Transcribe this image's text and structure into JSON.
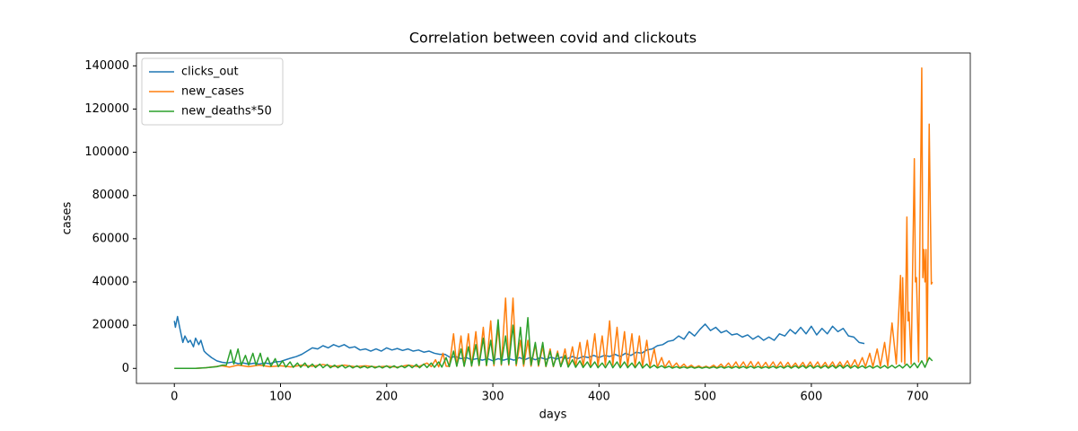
{
  "chart_data": {
    "type": "line",
    "title": "Correlation between covid and clickouts",
    "x_label": "days",
    "y_label": "cases",
    "xlim": [
      -35.7,
      749.7
    ],
    "xticks": [
      0,
      100,
      200,
      300,
      400,
      500,
      600,
      700
    ],
    "ylim": [
      -6950,
      145950
    ],
    "yticks": [
      0,
      20000,
      40000,
      60000,
      80000,
      100000,
      120000,
      140000
    ],
    "legend": "upper left",
    "series": [
      {
        "name": "clicks_out",
        "color": "#1f77b4",
        "x": [
          0,
          1,
          3,
          5,
          8,
          10,
          13,
          15,
          18,
          20,
          23,
          25,
          28,
          30,
          35,
          40,
          45,
          50,
          55,
          60,
          65,
          70,
          75,
          80,
          85,
          90,
          95,
          100,
          105,
          110,
          115,
          120,
          125,
          130,
          135,
          140,
          145,
          150,
          155,
          160,
          165,
          170,
          175,
          180,
          185,
          190,
          195,
          200,
          205,
          210,
          215,
          220,
          225,
          230,
          235,
          240,
          245,
          250,
          255,
          260,
          265,
          270,
          275,
          280,
          285,
          290,
          295,
          300,
          305,
          310,
          315,
          320,
          325,
          330,
          335,
          340,
          345,
          350,
          355,
          360,
          365,
          370,
          375,
          380,
          385,
          390,
          395,
          400,
          405,
          410,
          415,
          420,
          425,
          430,
          435,
          440,
          445,
          450,
          455,
          460,
          465,
          470,
          475,
          480,
          485,
          490,
          495,
          500,
          505,
          510,
          515,
          520,
          525,
          530,
          535,
          540,
          545,
          550,
          555,
          560,
          565,
          570,
          575,
          580,
          585,
          590,
          595,
          600,
          605,
          610,
          615,
          620,
          625,
          630,
          635,
          640,
          645,
          650
        ],
        "values": [
          22000,
          19000,
          24000,
          19000,
          12000,
          15000,
          12000,
          13000,
          10000,
          14000,
          11000,
          13000,
          8000,
          7000,
          5000,
          3500,
          2800,
          2500,
          3000,
          2200,
          2500,
          2000,
          2400,
          2000,
          2500,
          2200,
          3000,
          3200,
          4000,
          4800,
          5500,
          6500,
          8000,
          9500,
          9000,
          10500,
          9500,
          11000,
          10000,
          11000,
          9500,
          10000,
          8500,
          9000,
          8000,
          9000,
          8000,
          9500,
          8500,
          9200,
          8300,
          9000,
          8000,
          8500,
          7500,
          8000,
          7000,
          6500,
          6500,
          5000,
          5500,
          4500,
          5000,
          4000,
          4500,
          3800,
          4500,
          3500,
          4500,
          3800,
          4500,
          3800,
          5000,
          4000,
          5000,
          4000,
          5000,
          4200,
          5200,
          4300,
          5200,
          4500,
          5500,
          4500,
          5500,
          5000,
          6000,
          5000,
          6000,
          5500,
          6500,
          5500,
          7000,
          6000,
          7500,
          7000,
          8500,
          9000,
          10500,
          11000,
          12500,
          13000,
          15000,
          13500,
          17000,
          15000,
          18000,
          20500,
          17500,
          19000,
          16500,
          17500,
          15500,
          16000,
          14500,
          15500,
          13500,
          15000,
          13000,
          14500,
          13000,
          16000,
          15000,
          18000,
          16000,
          19000,
          16000,
          19500,
          15500,
          18500,
          16000,
          19500,
          17000,
          18500,
          15000,
          14500,
          12000,
          11500
        ]
      },
      {
        "name": "new_cases",
        "color": "#ff7f0e",
        "x": [
          0,
          20,
          30,
          38,
          45,
          52,
          60,
          70,
          80,
          90,
          100,
          110,
          120,
          130,
          140,
          150,
          160,
          170,
          180,
          190,
          200,
          210,
          220,
          230,
          238,
          242,
          246,
          249,
          253,
          256,
          259,
          263,
          266,
          270,
          273,
          277,
          280,
          284,
          287,
          291,
          294,
          298,
          301,
          305,
          308,
          312,
          315,
          319,
          322,
          326,
          329,
          333,
          336,
          340,
          343,
          347,
          350,
          354,
          357,
          361,
          364,
          368,
          371,
          375,
          378,
          382,
          385,
          389,
          392,
          396,
          399,
          403,
          406,
          410,
          413,
          417,
          420,
          424,
          427,
          431,
          434,
          438,
          441,
          445,
          448,
          452,
          455,
          459,
          462,
          466,
          469,
          473,
          476,
          480,
          483,
          487,
          490,
          494,
          497,
          501,
          504,
          508,
          511,
          515,
          518,
          522,
          525,
          529,
          532,
          536,
          539,
          543,
          546,
          550,
          553,
          557,
          560,
          564,
          567,
          571,
          574,
          578,
          581,
          585,
          588,
          592,
          595,
          599,
          602,
          606,
          609,
          613,
          616,
          620,
          623,
          627,
          630,
          634,
          637,
          641,
          644,
          648,
          651,
          655,
          658,
          662,
          665,
          669,
          672,
          676,
          680,
          684,
          685,
          686,
          688,
          690,
          691,
          692,
          694,
          697,
          698,
          699,
          701,
          704,
          705,
          706,
          707,
          708,
          709,
          711,
          713,
          714
        ],
        "values": [
          0,
          0,
          300,
          800,
          1200,
          600,
          1500,
          800,
          1500,
          800,
          1200,
          700,
          1500,
          1000,
          1800,
          900,
          1500,
          800,
          1200,
          700,
          1000,
          600,
          1500,
          800,
          2500,
          800,
          4000,
          700,
          7000,
          1000,
          1000,
          16000,
          1000,
          15000,
          1000,
          16000,
          1000,
          17000,
          1200,
          19000,
          1200,
          22000,
          1200,
          19000,
          1500,
          32500,
          1500,
          32500,
          1200,
          13000,
          1000,
          13000,
          1000,
          11000,
          1000,
          10000,
          800,
          9000,
          800,
          8000,
          800,
          9000,
          800,
          10000,
          1000,
          12000,
          1000,
          13000,
          1200,
          16000,
          1200,
          15000,
          1500,
          22000,
          1500,
          19000,
          1200,
          17000,
          1200,
          16000,
          1000,
          15000,
          1000,
          13000,
          800,
          9000,
          600,
          5000,
          500,
          3500,
          400,
          2500,
          300,
          2000,
          300,
          1500,
          300,
          1200,
          300,
          1000,
          300,
          1500,
          300,
          2000,
          300,
          2500,
          300,
          3000,
          300,
          3000,
          300,
          3200,
          300,
          3000,
          300,
          2800,
          300,
          3000,
          300,
          3000,
          300,
          2800,
          300,
          2500,
          300,
          2800,
          300,
          3000,
          300,
          3000,
          300,
          2800,
          300,
          3000,
          300,
          3000,
          500,
          3500,
          500,
          4000,
          600,
          5000,
          800,
          7000,
          800,
          9000,
          1000,
          12000,
          1000,
          21000,
          2000,
          43000,
          3000,
          42000,
          2000,
          70000,
          22000,
          26000,
          2000,
          97000,
          40000,
          42000,
          3000,
          139000,
          42000,
          55000,
          40000,
          55000,
          3000,
          113000,
          39000,
          40000
        ]
      },
      {
        "name": "new_deaths*50",
        "color": "#2ca02c",
        "x": [
          0,
          20,
          30,
          40,
          45,
          49,
          53,
          56,
          60,
          63,
          67,
          70,
          74,
          77,
          81,
          84,
          88,
          91,
          95,
          98,
          102,
          105,
          109,
          112,
          116,
          119,
          123,
          126,
          130,
          133,
          137,
          140,
          144,
          147,
          151,
          154,
          158,
          161,
          165,
          168,
          172,
          175,
          179,
          182,
          186,
          189,
          193,
          196,
          200,
          203,
          207,
          210,
          214,
          217,
          221,
          224,
          228,
          231,
          235,
          238,
          242,
          245,
          249,
          252,
          256,
          259,
          263,
          266,
          270,
          273,
          277,
          280,
          284,
          287,
          291,
          294,
          298,
          301,
          305,
          308,
          312,
          315,
          319,
          322,
          326,
          329,
          333,
          336,
          340,
          343,
          347,
          350,
          354,
          357,
          361,
          364,
          368,
          371,
          375,
          378,
          382,
          385,
          389,
          392,
          396,
          399,
          403,
          406,
          410,
          413,
          417,
          420,
          424,
          427,
          431,
          434,
          438,
          441,
          445,
          448,
          452,
          455,
          459,
          462,
          466,
          469,
          473,
          476,
          480,
          483,
          487,
          490,
          494,
          497,
          501,
          504,
          508,
          511,
          515,
          518,
          522,
          525,
          529,
          532,
          536,
          539,
          543,
          546,
          550,
          553,
          557,
          560,
          564,
          567,
          571,
          574,
          578,
          581,
          585,
          588,
          592,
          595,
          599,
          602,
          606,
          609,
          613,
          616,
          620,
          623,
          627,
          630,
          634,
          637,
          641,
          644,
          648,
          651,
          655,
          658,
          662,
          665,
          669,
          672,
          676,
          679,
          683,
          686,
          690,
          693,
          697,
          700,
          704,
          707,
          711,
          714
        ],
        "values": [
          0,
          0,
          300,
          800,
          1500,
          1500,
          8500,
          2000,
          9000,
          1500,
          6000,
          1500,
          7000,
          1500,
          7000,
          1000,
          5000,
          1000,
          4500,
          800,
          3500,
          600,
          3000,
          500,
          2500,
          500,
          2500,
          400,
          2000,
          400,
          2000,
          300,
          1800,
          300,
          1500,
          300,
          1500,
          200,
          1200,
          200,
          1200,
          200,
          1000,
          200,
          1000,
          200,
          1000,
          200,
          1200,
          200,
          1200,
          200,
          1200,
          300,
          1500,
          300,
          1800,
          300,
          2000,
          400,
          2500,
          500,
          3000,
          600,
          5000,
          800,
          8000,
          1000,
          9000,
          1000,
          10000,
          1200,
          11000,
          1500,
          14000,
          1500,
          13000,
          2000,
          22500,
          2000,
          15000,
          2000,
          20000,
          2000,
          19000,
          2000,
          23500,
          1500,
          12000,
          1500,
          12000,
          1000,
          8000,
          1000,
          7000,
          800,
          6000,
          600,
          4000,
          500,
          3500,
          400,
          3000,
          400,
          3000,
          300,
          2500,
          300,
          3500,
          300,
          3000,
          300,
          3000,
          300,
          2500,
          300,
          3000,
          200,
          2000,
          200,
          1500,
          200,
          1200,
          200,
          1000,
          100,
          800,
          100,
          700,
          100,
          700,
          100,
          600,
          100,
          600,
          100,
          700,
          100,
          800,
          100,
          800,
          100,
          900,
          100,
          900,
          100,
          1000,
          100,
          900,
          100,
          800,
          100,
          1000,
          100,
          1000,
          100,
          1200,
          100,
          1200,
          100,
          1300,
          100,
          1400,
          100,
          1200,
          100,
          1300,
          100,
          1400,
          100,
          1500,
          100,
          1500,
          100,
          1300,
          100,
          1200,
          100,
          1200,
          100,
          1200,
          100,
          1300,
          100,
          1400,
          200,
          1500,
          200,
          2000,
          300,
          2500,
          300,
          3500,
          500,
          5000,
          3500
        ]
      }
    ]
  }
}
